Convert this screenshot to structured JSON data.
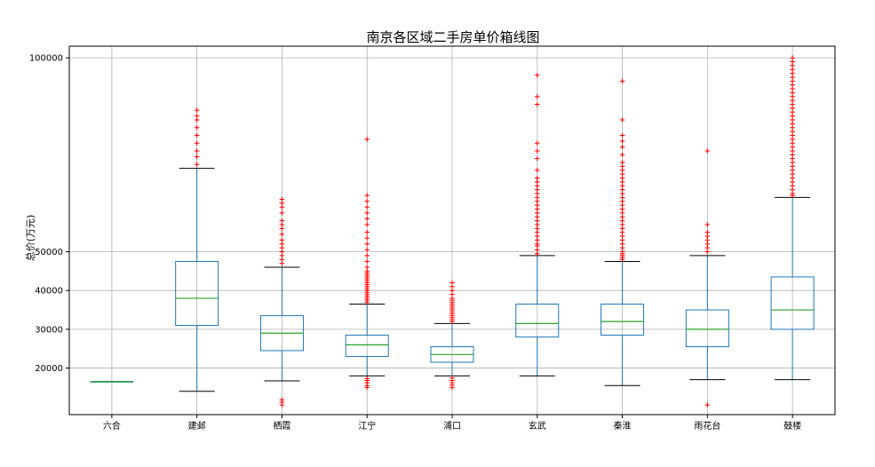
{
  "chart_data": {
    "type": "box",
    "title": "南京各区域二手房单价箱线图",
    "xlabel": "",
    "ylabel": "总价(万元)",
    "ylim": [
      8000,
      103000
    ],
    "y_ticks": [
      20000,
      30000,
      40000,
      50000,
      100000
    ],
    "grid": true,
    "colors": {
      "box": "#1f77b4",
      "median": "#2ca02c",
      "whisker": "#1f77b4",
      "cap": "#000000",
      "flier": "#ff0000",
      "grid": "#b0b0b0"
    },
    "categories": [
      "六合",
      "建邺",
      "栖霞",
      "江宁",
      "浦口",
      "玄武",
      "秦淮",
      "雨花台",
      "鼓楼"
    ],
    "boxes": [
      {
        "name": "六合",
        "whislo": 16500,
        "q1": 16500,
        "med": 16500,
        "q3": 16500,
        "whishi": 16500,
        "fliers": []
      },
      {
        "name": "建邺",
        "whislo": 14000,
        "q1": 31000,
        "med": 38000,
        "q3": 47500,
        "whishi": 71500,
        "fliers": [
          72500,
          74500,
          76000,
          78000,
          80000,
          82000,
          84000,
          85000,
          86500
        ]
      },
      {
        "name": "栖霞",
        "whislo": 16700,
        "q1": 24500,
        "med": 29000,
        "q3": 33500,
        "whishi": 46000,
        "fliers": [
          10500,
          11200,
          11800,
          47000,
          48000,
          49000,
          50000,
          51000,
          52000,
          53000,
          54500,
          56000,
          57000,
          58000,
          60000,
          61500,
          62500,
          63500
        ]
      },
      {
        "name": "江宁",
        "whislo": 18000,
        "q1": 23000,
        "med": 26000,
        "q3": 28500,
        "whishi": 36500,
        "fliers": [
          15000,
          15500,
          16200,
          16800,
          17300,
          37000,
          37500,
          38000,
          38500,
          39000,
          39500,
          40000,
          40500,
          41000,
          41500,
          42000,
          42500,
          43000,
          43500,
          44000,
          44500,
          45000,
          46000,
          47500,
          49000,
          50500,
          52000,
          53500,
          55000,
          57000,
          58500,
          60000,
          61500,
          63000,
          64500,
          79000
        ]
      },
      {
        "name": "浦口",
        "whislo": 18000,
        "q1": 21500,
        "med": 23500,
        "q3": 25500,
        "whishi": 31500,
        "fliers": [
          15000,
          15600,
          16200,
          16800,
          17400,
          32000,
          32500,
          33000,
          33500,
          34000,
          34500,
          35000,
          35500,
          36000,
          36500,
          37000,
          37500,
          38000,
          39000,
          40000,
          41000,
          42000
        ]
      },
      {
        "name": "玄武",
        "whislo": 18000,
        "q1": 28000,
        "med": 31500,
        "q3": 36500,
        "whishi": 49000,
        "fliers": [
          49500,
          50500,
          51500,
          52000,
          53000,
          54000,
          55000,
          56000,
          57000,
          58000,
          59000,
          60000,
          61000,
          62000,
          63000,
          64000,
          65000,
          66000,
          67000,
          68000,
          69000,
          71000,
          74000,
          76000,
          78000,
          88000,
          90000,
          95500
        ]
      },
      {
        "name": "秦淮",
        "whislo": 15500,
        "q1": 28500,
        "med": 32000,
        "q3": 36500,
        "whishi": 47500,
        "fliers": [
          48000,
          48500,
          49000,
          49500,
          50000,
          51000,
          52000,
          53000,
          54000,
          55000,
          56000,
          57000,
          58000,
          59000,
          60000,
          61000,
          62000,
          63000,
          64000,
          65000,
          66000,
          67000,
          68000,
          69000,
          70000,
          71000,
          72000,
          73000,
          75000,
          77000,
          78500,
          80000,
          84000,
          94000
        ]
      },
      {
        "name": "雨花台",
        "whislo": 17000,
        "q1": 25500,
        "med": 30000,
        "q3": 35000,
        "whishi": 49000,
        "fliers": [
          10500,
          50000,
          51000,
          52000,
          53000,
          54000,
          55000,
          57000,
          76000
        ]
      },
      {
        "name": "鼓楼",
        "whislo": 17000,
        "q1": 30000,
        "med": 35000,
        "q3": 43500,
        "whishi": 64000,
        "fliers": [
          64500,
          65000,
          66000,
          67000,
          68000,
          69000,
          70000,
          71000,
          72000,
          73000,
          74000,
          75000,
          76000,
          77000,
          78000,
          79000,
          80000,
          81000,
          82000,
          83000,
          84000,
          85000,
          86000,
          87000,
          88000,
          89000,
          90000,
          91000,
          92000,
          93000,
          94000,
          95000,
          96000,
          97000,
          98000,
          99000,
          100000
        ]
      }
    ]
  }
}
